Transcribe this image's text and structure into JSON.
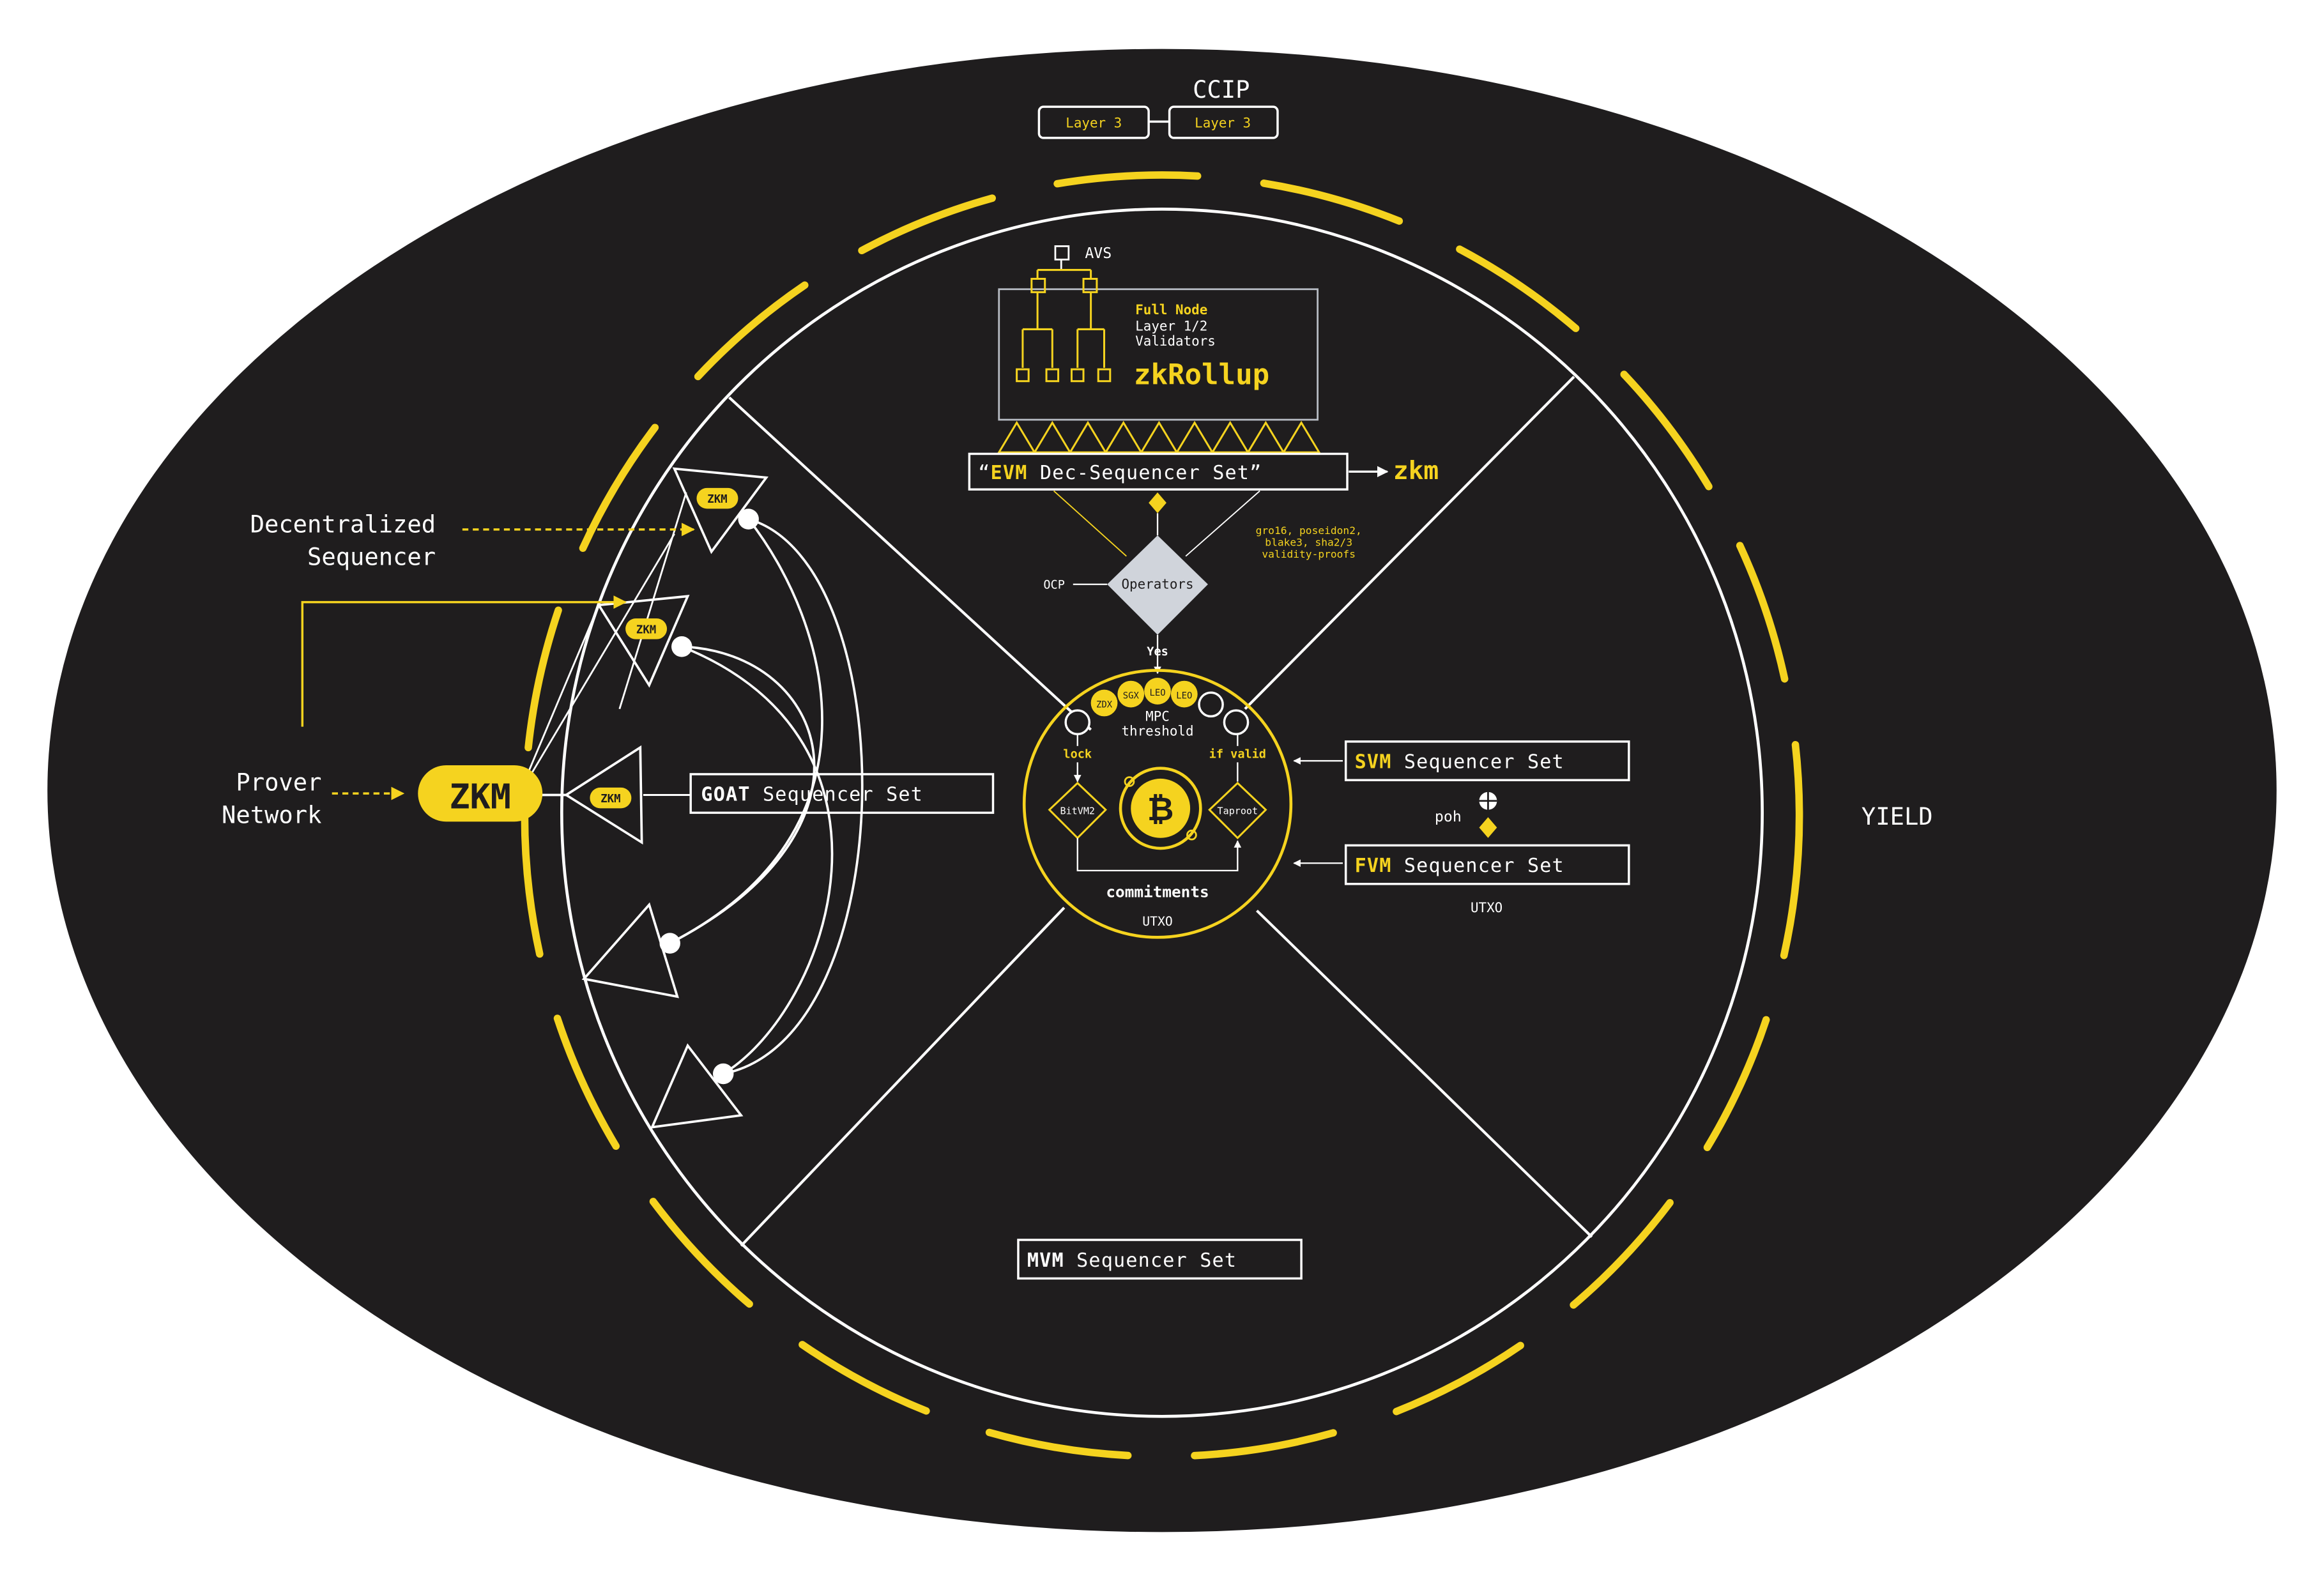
{
  "colors": {
    "background": "#1f1d1e",
    "accent": "#f5d31f",
    "line": "#ffffff",
    "operator_fill": "#d0d4db",
    "page": "#ffffff"
  },
  "labels": {
    "ccip": "CCIP",
    "layer3_left": "Layer 3",
    "layer3_right": "Layer 3",
    "avs": "AVS",
    "full_node": "Full Node",
    "layer_validators_1": "Layer 1/2",
    "layer_validators_2": "Validators",
    "zkrollup": "zkRollup",
    "evm_quote_open": "“",
    "evm_bold": "EVM",
    "evm_rest": " Dec-Sequencer Set",
    "evm_quote_close": "”",
    "zkm_arrow_label": "zkm",
    "proofs_1": "gro16, poseidon2,",
    "proofs_2": "blake3, sha2/3",
    "proofs_3": "validity-proofs",
    "ocp": "OCP",
    "operators": "Operators",
    "yes": "Yes",
    "mpc_1": "MPC",
    "mpc_2": "threshold",
    "lock": "lock",
    "if_valid": "if valid",
    "bitvm2": "BitVM2",
    "taproot": "Taproot",
    "bitcoin_symbol": "₿",
    "commitments": "commitments",
    "utxo_center": "UTXO",
    "token_zdx": "ZDX",
    "token_sgx": "SGX",
    "token_leo1": "LEO",
    "token_leo2": "LEO",
    "svm_bold": "SVM",
    "svm_rest": " Sequencer Set",
    "poh": "poh",
    "fvm_bold": "FVM",
    "fvm_rest": " Sequencer Set",
    "utxo_right": "UTXO",
    "goat_bold": "GOAT",
    "goat_rest": " Sequencer Set",
    "mvm_bold": "MVM",
    "mvm_rest": " Sequencer Set",
    "yield": "YIELD",
    "decentralized_1": "Decentralized",
    "decentralized_2": "Sequencer",
    "prover_1": "Prover",
    "prover_2": "Network",
    "zkm_main": "ZKM",
    "zkm_badge_1": "ZKM",
    "zkm_badge_2": "ZKM",
    "zkm_badge_3": "ZKM"
  }
}
